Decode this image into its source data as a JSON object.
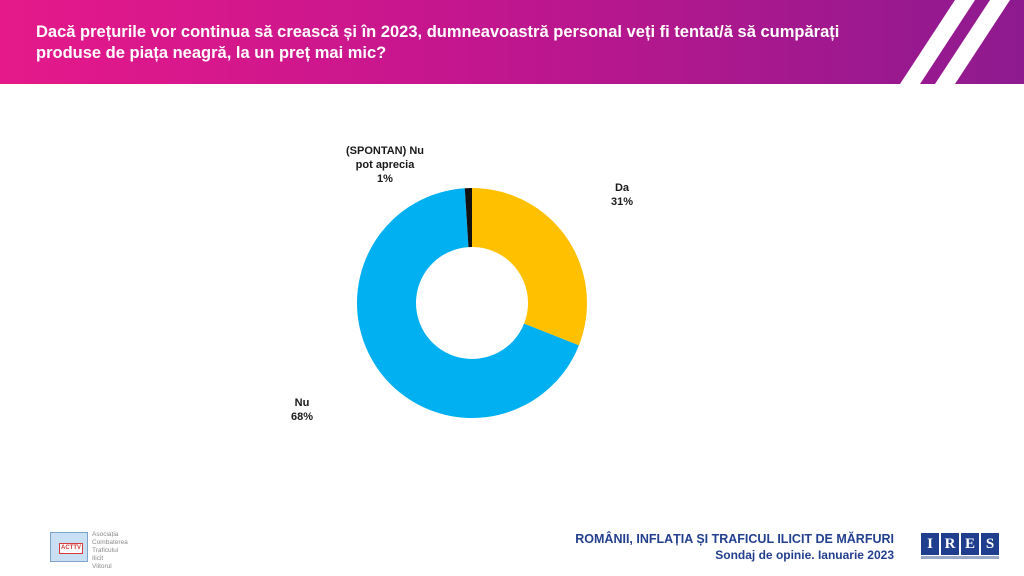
{
  "header": {
    "title": "Dacă prețurile vor continua să crească și în 2023, dumneavoastră personal veți fi tentat/ă să cumpărați produse de piața neagră, la un preț mai mic?"
  },
  "chart_data": {
    "type": "pie",
    "variant": "donut",
    "categories": [
      "Da",
      "Nu",
      "(SPONTAN) Nu pot aprecia"
    ],
    "values": [
      31,
      68,
      1
    ],
    "unit": "%",
    "labels": [
      {
        "line1": "Da",
        "line2": "",
        "value": "31%"
      },
      {
        "line1": "Nu",
        "line2": "",
        "value": "68%"
      },
      {
        "line1": "(SPONTAN) Nu",
        "line2": "pot aprecia",
        "value": "1%"
      }
    ],
    "colors": [
      "#ffc000",
      "#00b0f0",
      "#111111"
    ]
  },
  "footer": {
    "title": "ROMÂNII, INFLAȚIA ȘI TRAFICUL ILICIT DE MĂRFURI",
    "subtitle": "Sondaj de opinie. Ianuarie 2023",
    "logo_letters": [
      "I",
      "R",
      "E",
      "S"
    ],
    "partner_badge": "ACTTV",
    "partner_lines": [
      "Asociația",
      "Combaterea",
      "Traficului",
      "Ilicit",
      "Viitorul"
    ]
  }
}
